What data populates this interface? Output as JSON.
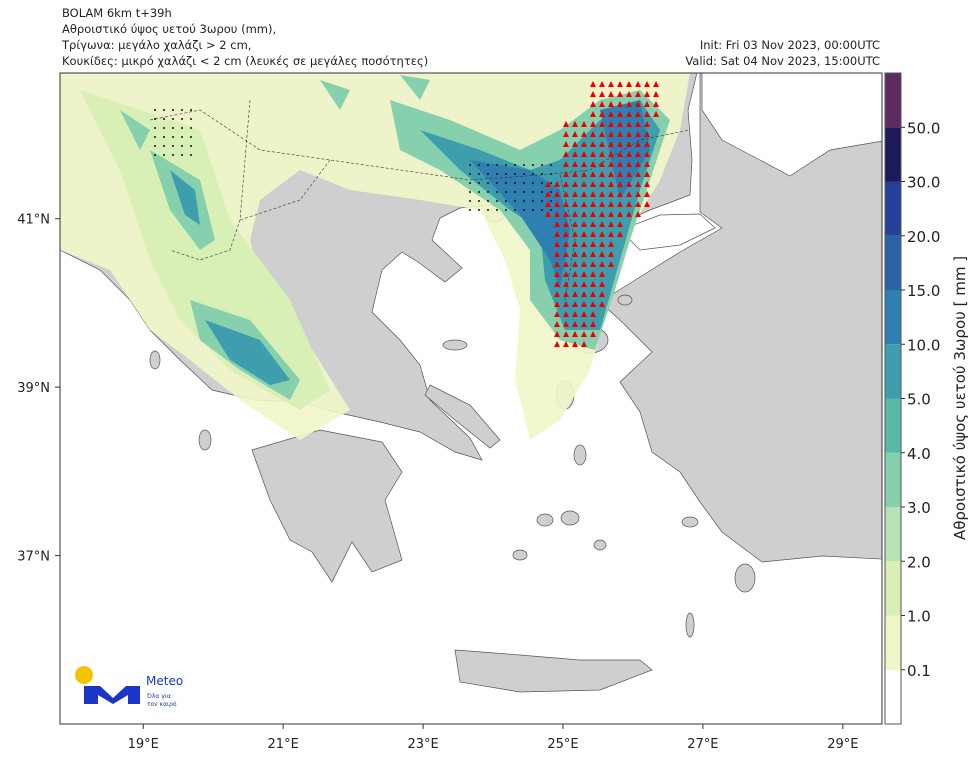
{
  "header": {
    "lines": [
      "BOLAM 6km t+39h",
      "Αθροιστικό ύψος υετού 3ωρου (mm),",
      "Τρίγωνα: μεγάλο χαλάζι > 2 cm,",
      "Κουκίδες: μικρό χαλάζι < 2 cm (λευκές σε μεγάλες ποσότητες)"
    ],
    "init": "Init: Fri 03 Nov 2023, 00:00UTC",
    "valid": "Valid: Sat 04 Nov 2023, 15:00UTC"
  },
  "map": {
    "xlim": [
      17.81,
      29.56
    ],
    "ylim": [
      35.0,
      42.73
    ],
    "xticks": [
      {
        "value": 19,
        "label": "19°E"
      },
      {
        "value": 21,
        "label": "21°E"
      },
      {
        "value": 23,
        "label": "23°E"
      },
      {
        "value": 25,
        "label": "25°E"
      },
      {
        "value": 27,
        "label": "27°E"
      },
      {
        "value": 29,
        "label": "29°E"
      }
    ],
    "yticks": [
      {
        "value": 37,
        "label": "37°N"
      },
      {
        "value": 39,
        "label": "39°N"
      },
      {
        "value": 41,
        "label": "41°N"
      }
    ]
  },
  "colorbar": {
    "label": "Αθροιστικό ύψος υετού 3ωρου [ mm ]",
    "levels": [
      0.1,
      {
        "value": 1,
        "label": "1.0"
      },
      {
        "value": 2,
        "label": "2.0"
      },
      {
        "value": 3,
        "label": "3.0"
      },
      {
        "value": 4,
        "label": "4.0"
      },
      {
        "value": 5,
        "label": "5.0"
      },
      {
        "value": 10,
        "label": "10.0"
      },
      {
        "value": 15,
        "label": "15.0"
      },
      {
        "value": 20,
        "label": "20.0"
      },
      {
        "value": 30,
        "label": "30.0"
      },
      {
        "value": 50,
        "label": "50.0"
      }
    ],
    "colors": [
      "#ffffff",
      "#f1f6c9",
      "#d8efb6",
      "#b6e3b3",
      "#86d0ae",
      "#57b9a6",
      "#3e9eae",
      "#2f80b0",
      "#2a62a6",
      "#24419a",
      "#1c1a58",
      "#5e2b60"
    ]
  },
  "logo": {
    "name": "Meteo",
    "tagline": [
      "Όλα για",
      "τον καιρό"
    ]
  }
}
